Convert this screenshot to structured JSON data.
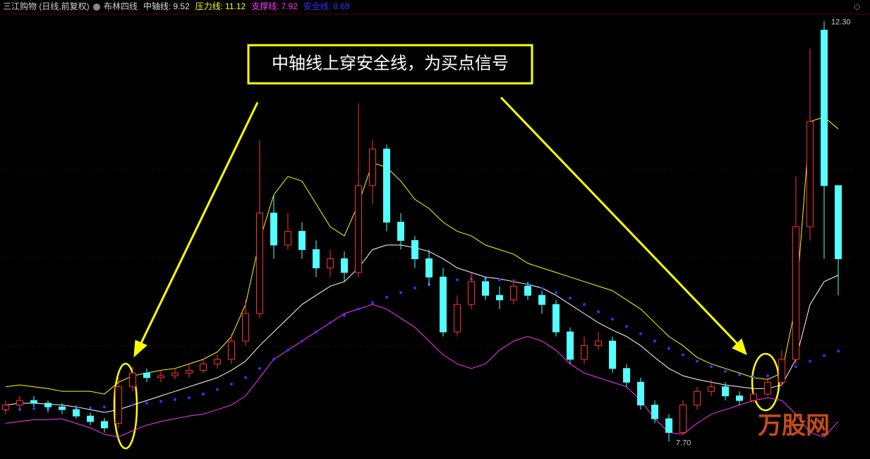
{
  "chart_data": {
    "type": "candlestick",
    "title": "三江购物 (日线,前复权)",
    "indicator": "布林四线",
    "legend": [
      {
        "name": "中轴线:",
        "value": 9.52,
        "color": "#ffffff"
      },
      {
        "name": "压力线:",
        "value": 11.12,
        "color": "#ffff00"
      },
      {
        "name": "支撑线:",
        "value": 7.92,
        "color": "#ff33ff"
      },
      {
        "name": "安全线:",
        "value": 8.69,
        "color": "#3333ff"
      }
    ],
    "annotation": "中轴线上穿安全线，为买点信号",
    "high_label": "12.30",
    "low_label": "7.70",
    "watermark": "万股网",
    "ylim": [
      7.51,
      12.53
    ],
    "up_color": "#ff3232",
    "down_color": "#54ffff",
    "open": [
      8.05,
      8.1,
      8.15,
      8.12,
      8.08,
      8.05,
      7.98,
      7.92,
      7.9,
      8.3,
      8.45,
      8.4,
      8.42,
      8.45,
      8.48,
      8.55,
      8.6,
      8.8,
      9.1,
      10.2,
      9.85,
      10.0,
      9.8,
      9.6,
      9.7,
      9.55,
      10.5,
      10.9,
      10.1,
      9.9,
      9.7,
      9.5,
      8.9,
      9.2,
      9.45,
      9.3,
      9.25,
      9.4,
      9.3,
      9.2,
      8.9,
      8.6,
      8.75,
      8.8,
      8.5,
      8.35,
      8.1,
      7.95,
      7.8,
      8.1,
      8.25,
      8.3,
      8.2,
      8.15,
      8.22,
      8.35,
      8.6,
      10.05,
      12.2,
      10.5
    ],
    "high": [
      8.15,
      8.2,
      8.2,
      8.15,
      8.12,
      8.1,
      8.02,
      7.96,
      8.4,
      8.52,
      8.5,
      8.48,
      8.5,
      8.55,
      8.6,
      8.65,
      8.88,
      9.25,
      11.0,
      10.4,
      10.2,
      10.1,
      9.9,
      9.8,
      9.78,
      11.4,
      11.0,
      10.95,
      10.2,
      9.95,
      9.8,
      9.6,
      9.3,
      9.55,
      9.5,
      9.4,
      9.48,
      9.45,
      9.35,
      9.25,
      8.95,
      8.85,
      8.9,
      8.85,
      8.55,
      8.4,
      8.15,
      8.0,
      8.15,
      8.3,
      8.38,
      8.35,
      8.25,
      8.28,
      8.4,
      8.7,
      10.6,
      12.0,
      12.3,
      10.5
    ],
    "low": [
      8.0,
      8.05,
      8.08,
      8.02,
      8.0,
      7.95,
      7.88,
      7.8,
      7.85,
      8.25,
      8.35,
      8.35,
      8.38,
      8.4,
      8.45,
      8.5,
      8.55,
      8.75,
      9.05,
      9.7,
      9.8,
      9.7,
      9.5,
      9.5,
      9.45,
      9.5,
      10.3,
      10.0,
      9.8,
      9.6,
      9.4,
      8.85,
      8.85,
      9.15,
      9.25,
      9.15,
      9.2,
      9.25,
      9.1,
      8.85,
      8.55,
      8.55,
      8.7,
      8.45,
      8.3,
      8.05,
      7.9,
      7.7,
      7.78,
      8.05,
      8.2,
      8.15,
      8.1,
      8.12,
      8.2,
      8.3,
      8.55,
      9.9,
      9.7,
      9.3
    ],
    "close": [
      8.1,
      8.15,
      8.12,
      8.08,
      8.05,
      7.98,
      7.92,
      7.85,
      8.3,
      8.45,
      8.4,
      8.42,
      8.45,
      8.48,
      8.55,
      8.6,
      8.8,
      9.1,
      10.2,
      9.85,
      10.0,
      9.8,
      9.6,
      9.7,
      9.55,
      10.5,
      10.9,
      10.1,
      9.9,
      9.7,
      9.5,
      8.9,
      9.2,
      9.45,
      9.3,
      9.25,
      9.4,
      9.3,
      9.2,
      8.9,
      8.6,
      8.75,
      8.8,
      8.5,
      8.35,
      8.1,
      7.95,
      7.8,
      8.1,
      8.25,
      8.3,
      8.2,
      8.15,
      8.22,
      8.35,
      8.6,
      10.05,
      11.2,
      10.5,
      9.7
    ],
    "series": [
      {
        "name": "中轴线",
        "color": "#ffffff",
        "style": "line",
        "values": [
          8.1,
          8.12,
          8.12,
          8.11,
          8.1,
          8.08,
          8.05,
          8.02,
          8.05,
          8.1,
          8.15,
          8.2,
          8.25,
          8.3,
          8.35,
          8.4,
          8.48,
          8.58,
          8.75,
          8.9,
          9.05,
          9.2,
          9.3,
          9.4,
          9.45,
          9.6,
          9.8,
          9.85,
          9.85,
          9.82,
          9.78,
          9.7,
          9.6,
          9.55,
          9.5,
          9.48,
          9.45,
          9.42,
          9.38,
          9.3,
          9.2,
          9.1,
          9.0,
          8.92,
          8.85,
          8.75,
          8.62,
          8.5,
          8.42,
          8.38,
          8.35,
          8.32,
          8.3,
          8.28,
          8.28,
          8.32,
          8.6,
          9.2,
          9.45,
          9.52
        ]
      },
      {
        "name": "压力线",
        "color": "#ffff00",
        "style": "line",
        "values": [
          8.3,
          8.32,
          8.3,
          8.28,
          8.25,
          8.25,
          8.25,
          8.22,
          8.35,
          8.42,
          8.45,
          8.48,
          8.5,
          8.55,
          8.6,
          8.68,
          8.85,
          9.2,
          9.9,
          10.4,
          10.6,
          10.55,
          10.3,
          10.05,
          9.95,
          10.3,
          10.75,
          10.7,
          10.55,
          10.35,
          10.25,
          10.1,
          10.0,
          9.95,
          9.85,
          9.8,
          9.75,
          9.65,
          9.6,
          9.55,
          9.5,
          9.45,
          9.4,
          9.35,
          9.25,
          9.15,
          9.0,
          8.85,
          8.75,
          8.62,
          8.55,
          8.5,
          8.45,
          8.4,
          8.38,
          8.45,
          9.2,
          11.2,
          11.25,
          11.12
        ]
      },
      {
        "name": "支撑线",
        "color": "#ff33ff",
        "style": "line",
        "values": [
          7.9,
          7.92,
          7.94,
          7.94,
          7.95,
          7.9,
          7.85,
          7.78,
          7.75,
          7.82,
          7.88,
          7.92,
          7.95,
          7.98,
          8.0,
          8.05,
          8.1,
          8.2,
          8.4,
          8.6,
          8.7,
          8.8,
          8.9,
          9.0,
          9.1,
          9.15,
          9.2,
          9.15,
          9.05,
          8.95,
          8.8,
          8.65,
          8.55,
          8.5,
          8.55,
          8.7,
          8.8,
          8.85,
          8.8,
          8.7,
          8.55,
          8.45,
          8.4,
          8.35,
          8.3,
          8.15,
          7.95,
          7.8,
          7.78,
          7.9,
          8.0,
          8.05,
          8.1,
          8.15,
          8.18,
          8.15,
          8.0,
          7.8,
          7.75,
          7.92
        ]
      },
      {
        "name": "安全线",
        "color": "#3333ff",
        "style": "dots",
        "values": [
          8.05,
          8.05,
          8.06,
          8.06,
          8.06,
          8.07,
          8.07,
          8.08,
          8.09,
          8.1,
          8.12,
          8.14,
          8.16,
          8.18,
          8.22,
          8.27,
          8.33,
          8.4,
          8.5,
          8.6,
          8.7,
          8.8,
          8.9,
          9.0,
          9.08,
          9.15,
          9.22,
          9.28,
          9.33,
          9.38,
          9.42,
          9.45,
          9.47,
          9.48,
          9.48,
          9.47,
          9.45,
          9.42,
          9.38,
          9.33,
          9.27,
          9.2,
          9.12,
          9.04,
          8.96,
          8.88,
          8.8,
          8.72,
          8.65,
          8.58,
          8.52,
          8.47,
          8.43,
          8.41,
          8.42,
          8.46,
          8.52,
          8.58,
          8.64,
          8.69
        ]
      }
    ]
  }
}
